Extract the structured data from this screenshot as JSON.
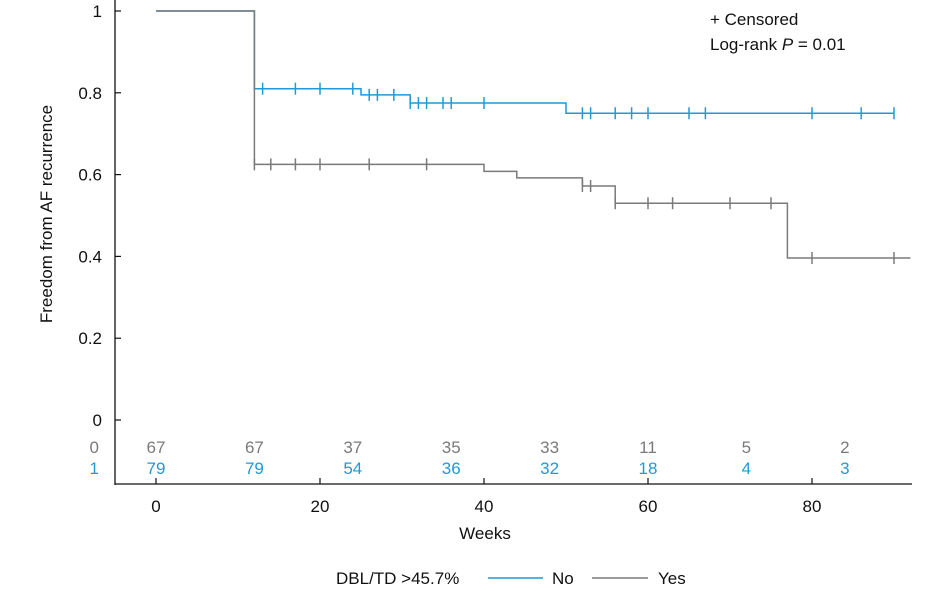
{
  "chart_data": {
    "type": "line",
    "xlabel": "Weeks",
    "ylabel": "Freedom from AF recurrence",
    "xlim": [
      0,
      92
    ],
    "ylim": [
      0,
      1
    ],
    "x_ticks": [
      "0",
      "20",
      "40",
      "60",
      "80"
    ],
    "x_tick_values": [
      0,
      20,
      40,
      60,
      80
    ],
    "y_ticks": [
      "0",
      "0.2",
      "0.4",
      "0.6",
      "0.8",
      "1"
    ],
    "y_tick_values": [
      0,
      0.2,
      0.4,
      0.6,
      0.8,
      1
    ],
    "grid": false,
    "legend": {
      "title": "DBL/TD >45.7%",
      "placement": "bottom-center"
    },
    "annotation": {
      "censored": "+ Censored",
      "logrank_prefix": "Log-rank ",
      "logrank_p": "P",
      "logrank_suffix": " = 0.01"
    },
    "series": [
      {
        "name": "No",
        "color": "#1f9ad6",
        "steps": [
          [
            0,
            1.0
          ],
          [
            12,
            0.81
          ],
          [
            24,
            0.81
          ],
          [
            25,
            0.795
          ],
          [
            30,
            0.795
          ],
          [
            31,
            0.775
          ],
          [
            50,
            0.775
          ],
          [
            50,
            0.75
          ],
          [
            90,
            0.75
          ]
        ],
        "censor_x": [
          13,
          17,
          20,
          24,
          26,
          27,
          29,
          31,
          32,
          33,
          35,
          36,
          40,
          52,
          53,
          56,
          58,
          60,
          65,
          67,
          80,
          86,
          90
        ],
        "risk_label": "1",
        "at_risk": [
          "79",
          "79",
          "54",
          "36",
          "32",
          "18",
          "4",
          "3"
        ]
      },
      {
        "name": "Yes",
        "color": "#7a7a7a",
        "steps": [
          [
            0,
            1.0
          ],
          [
            12,
            0.625
          ],
          [
            40,
            0.625
          ],
          [
            40,
            0.608
          ],
          [
            44,
            0.608
          ],
          [
            44,
            0.592
          ],
          [
            52,
            0.592
          ],
          [
            52,
            0.572
          ],
          [
            56,
            0.572
          ],
          [
            56,
            0.53
          ],
          [
            77,
            0.53
          ],
          [
            77,
            0.396
          ],
          [
            92,
            0.396
          ]
        ],
        "censor_x": [
          12,
          14,
          17,
          20,
          26,
          33,
          52,
          53,
          56,
          60,
          63,
          70,
          75,
          80,
          90
        ],
        "risk_label": "0",
        "at_risk": [
          "67",
          "67",
          "37",
          "35",
          "33",
          "11",
          "5",
          "2"
        ]
      }
    ],
    "at_risk_x": [
      0,
      12,
      24,
      36,
      48,
      60,
      72,
      84
    ]
  }
}
